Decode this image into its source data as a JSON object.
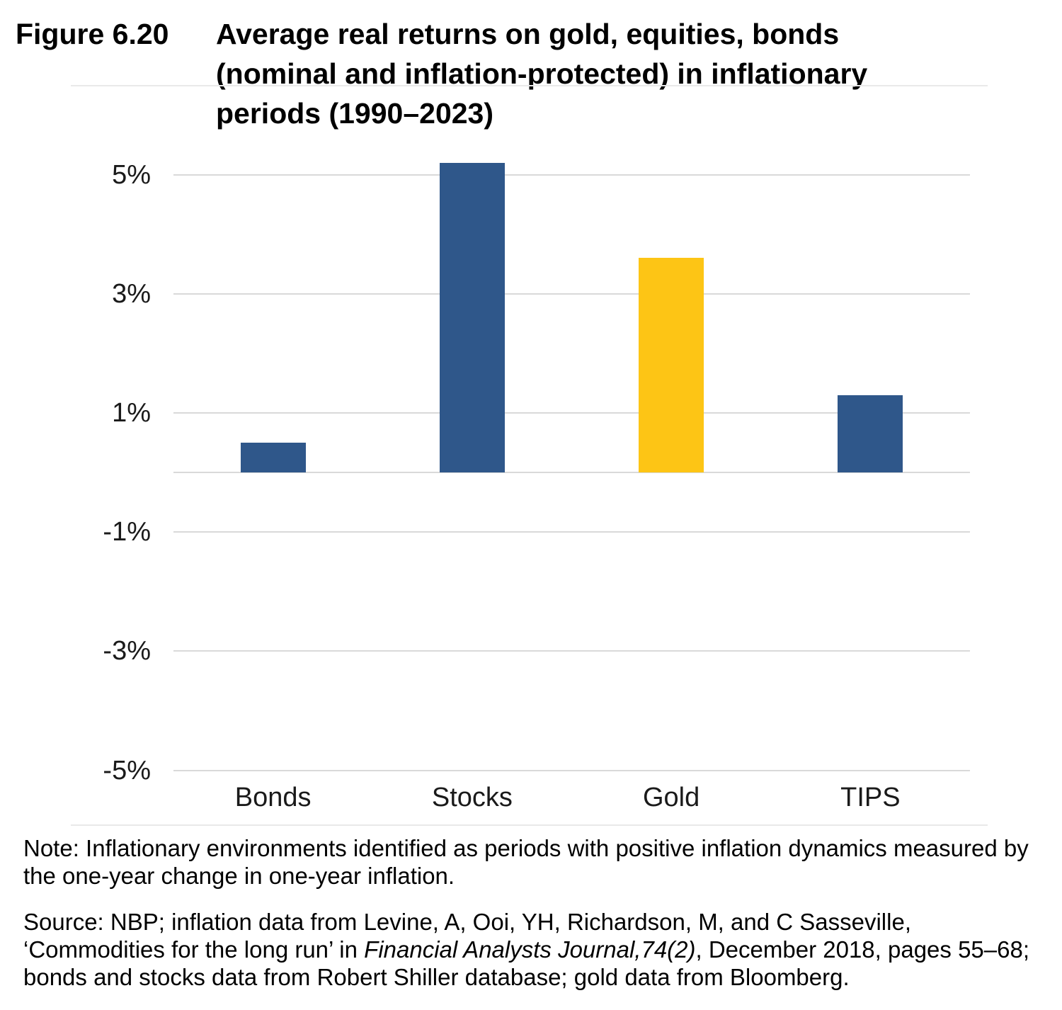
{
  "figure": {
    "label": "Figure 6.20",
    "title_lines": [
      "Average real returns on gold, equities, bonds",
      "(nominal and inflation-protected) in inflationary",
      "periods (1990–2023)"
    ]
  },
  "chart_data": {
    "type": "bar",
    "title": "Average real returns on gold, equities, bonds (nominal and inflation-protected) in inflationary periods (1990–2023)",
    "categories": [
      "Bonds",
      "Stocks",
      "Gold",
      "TIPS"
    ],
    "values": [
      0.5,
      5.2,
      3.6,
      1.3
    ],
    "unit": "%",
    "bar_colors": [
      "#2F578A",
      "#2F578A",
      "#FDC515",
      "#2F578A"
    ],
    "y_ticks": [
      {
        "label": "5%",
        "value": 5
      },
      {
        "label": "3%",
        "value": 3
      },
      {
        "label": "1%",
        "value": 1
      },
      {
        "label": "-1%",
        "value": -1
      },
      {
        "label": "-3%",
        "value": -3
      },
      {
        "label": "-5%",
        "value": -5
      }
    ],
    "zero_line": true,
    "ylim": [
      -5.5,
      5.5
    ],
    "xlabel": "",
    "ylabel": "",
    "grid": "horizontal",
    "legend": "none",
    "gridline_color": "#D9D9D9",
    "frame_color": "#E9E9E9"
  },
  "footer": {
    "note_lines": [
      "Note: Inflationary environments identified as periods with positive inflation dynamics measured by",
      "the one-year change in one-year inflation."
    ],
    "source_lines": [
      [
        {
          "text": "Source: NBP; inflation data from Levine, A, Ooi, YH, Richardson, M, and C Sasseville,"
        }
      ],
      [
        {
          "text": "‘Commodities for the long run’ in "
        },
        {
          "text": "Financial Analysts Journal,74(2)",
          "italic": true
        },
        {
          "text": ", December 2018, pages 55–68;"
        }
      ],
      [
        {
          "text": "bonds and stocks data from Robert Shiller database; gold data from Bloomberg."
        }
      ]
    ]
  }
}
